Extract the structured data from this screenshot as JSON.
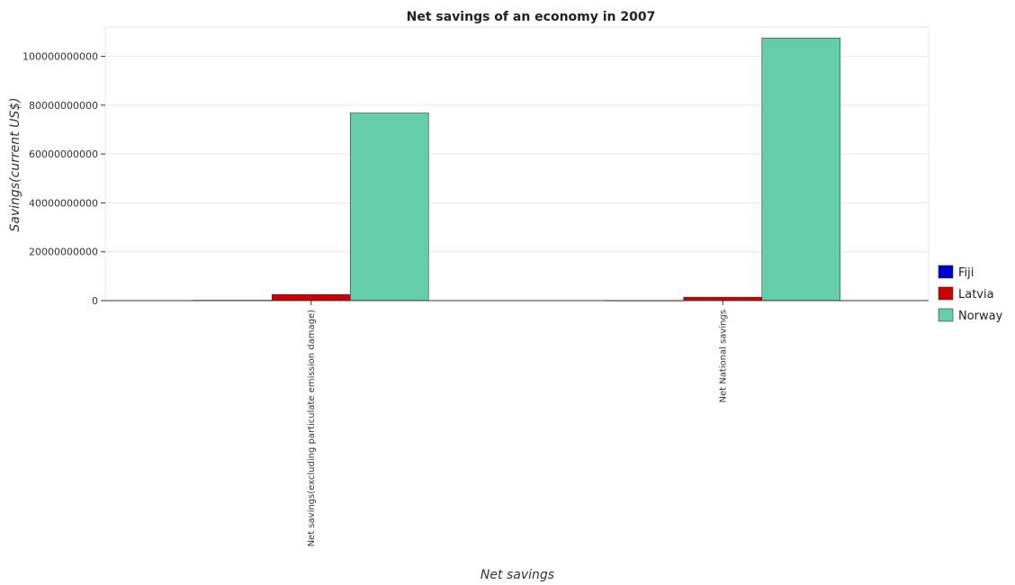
{
  "chart_data": {
    "type": "bar",
    "title": "Net savings of an economy in 2007",
    "xlabel": "Net savings",
    "ylabel": "Savings(current US$)",
    "categories": [
      "Net savings(excluding particulate emission damage)",
      "Net National savings"
    ],
    "series": [
      {
        "name": "Fiji",
        "color": "#0000cc",
        "values": [
          150000000,
          50000000
        ]
      },
      {
        "name": "Latvia",
        "color": "#cc0000",
        "values": [
          2500000000,
          1400000000
        ]
      },
      {
        "name": "Norway",
        "color": "#66cdaa",
        "values": [
          76800000000,
          107500000000
        ]
      }
    ],
    "ylim": [
      0,
      112000000000
    ],
    "yticks": [
      0,
      20000000000,
      40000000000,
      60000000000,
      80000000000,
      100000000000
    ],
    "ytick_labels": [
      "0",
      "20000000000",
      "40000000000",
      "60000000000",
      "80000000000",
      "100000000000"
    ],
    "grid": true,
    "legend_position": "right"
  }
}
